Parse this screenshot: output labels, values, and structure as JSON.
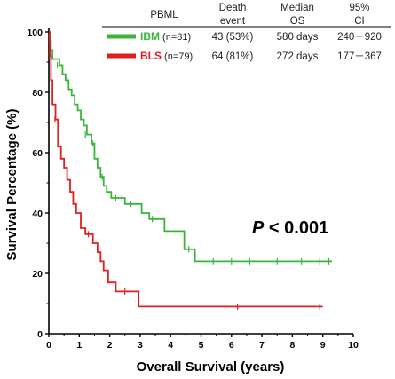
{
  "chart_data": {
    "type": "line",
    "xlabel": "Overall Survival (years)",
    "ylabel": "Survival Percentage (%)",
    "xlim": [
      0,
      10
    ],
    "ylim": [
      0,
      100
    ],
    "x_ticks": [
      "0",
      "1",
      "2",
      "3",
      "4",
      "5",
      "6",
      "7",
      "8",
      "9",
      "10"
    ],
    "y_ticks": [
      "0",
      "20",
      "40",
      "60",
      "80",
      "100"
    ],
    "annotation": {
      "prefix": "P",
      "rest": " < 0.001"
    },
    "table": {
      "headers": [
        "PBML",
        "Death\nevent",
        "Median\nOS",
        "95%\nCI"
      ],
      "rows": [
        {
          "name": "IBM",
          "n": " (n=81)",
          "color": "#3cb43c",
          "death": "43 (53%)",
          "median": "580 days",
          "ci": "240－920"
        },
        {
          "name": "BLS",
          "n": " (n=79)",
          "color": "#e02020",
          "death": "64 (81%)",
          "median": "272 days",
          "ci": "177－367"
        }
      ]
    },
    "series": [
      {
        "name": "IBM",
        "color": "#3cb43c",
        "steps": [
          [
            0,
            100
          ],
          [
            0.03,
            97
          ],
          [
            0.07,
            94
          ],
          [
            0.12,
            91
          ],
          [
            0.35,
            89
          ],
          [
            0.45,
            86
          ],
          [
            0.55,
            84
          ],
          [
            0.65,
            81
          ],
          [
            0.75,
            79
          ],
          [
            0.85,
            76
          ],
          [
            0.95,
            74
          ],
          [
            1.05,
            71
          ],
          [
            1.15,
            69
          ],
          [
            1.25,
            66
          ],
          [
            1.4,
            63
          ],
          [
            1.5,
            58
          ],
          [
            1.6,
            55
          ],
          [
            1.7,
            52
          ],
          [
            1.8,
            49
          ],
          [
            1.9,
            47
          ],
          [
            2.05,
            45
          ],
          [
            2.5,
            43
          ],
          [
            3.05,
            40
          ],
          [
            3.3,
            38
          ],
          [
            3.8,
            34
          ],
          [
            4.45,
            28
          ],
          [
            4.8,
            24
          ],
          [
            9.3,
            24
          ]
        ],
        "censors": [
          [
            0.28,
            89
          ],
          [
            0.6,
            84
          ],
          [
            1.2,
            66
          ],
          [
            1.45,
            63
          ],
          [
            1.75,
            52
          ],
          [
            2.2,
            45
          ],
          [
            2.4,
            45
          ],
          [
            2.7,
            43
          ],
          [
            3.4,
            38
          ],
          [
            4.6,
            28
          ],
          [
            5.4,
            24
          ],
          [
            6.0,
            24
          ],
          [
            6.6,
            24
          ],
          [
            7.5,
            24
          ],
          [
            8.3,
            24
          ],
          [
            8.9,
            24
          ],
          [
            9.2,
            24
          ]
        ]
      },
      {
        "name": "BLS",
        "color": "#e02020",
        "steps": [
          [
            0,
            100
          ],
          [
            0.03,
            92
          ],
          [
            0.07,
            84
          ],
          [
            0.12,
            76
          ],
          [
            0.22,
            71
          ],
          [
            0.3,
            62
          ],
          [
            0.4,
            58
          ],
          [
            0.5,
            55
          ],
          [
            0.6,
            51
          ],
          [
            0.7,
            47
          ],
          [
            0.8,
            43
          ],
          [
            0.9,
            40
          ],
          [
            1.05,
            35
          ],
          [
            1.2,
            33
          ],
          [
            1.45,
            30
          ],
          [
            1.6,
            27
          ],
          [
            1.7,
            24
          ],
          [
            1.8,
            21
          ],
          [
            1.95,
            17
          ],
          [
            2.2,
            14
          ],
          [
            2.95,
            9
          ],
          [
            9.0,
            9
          ]
        ],
        "censors": [
          [
            0.2,
            71
          ],
          [
            1.3,
            33
          ],
          [
            2.5,
            14
          ],
          [
            6.2,
            9
          ],
          [
            8.9,
            9
          ]
        ]
      }
    ]
  }
}
